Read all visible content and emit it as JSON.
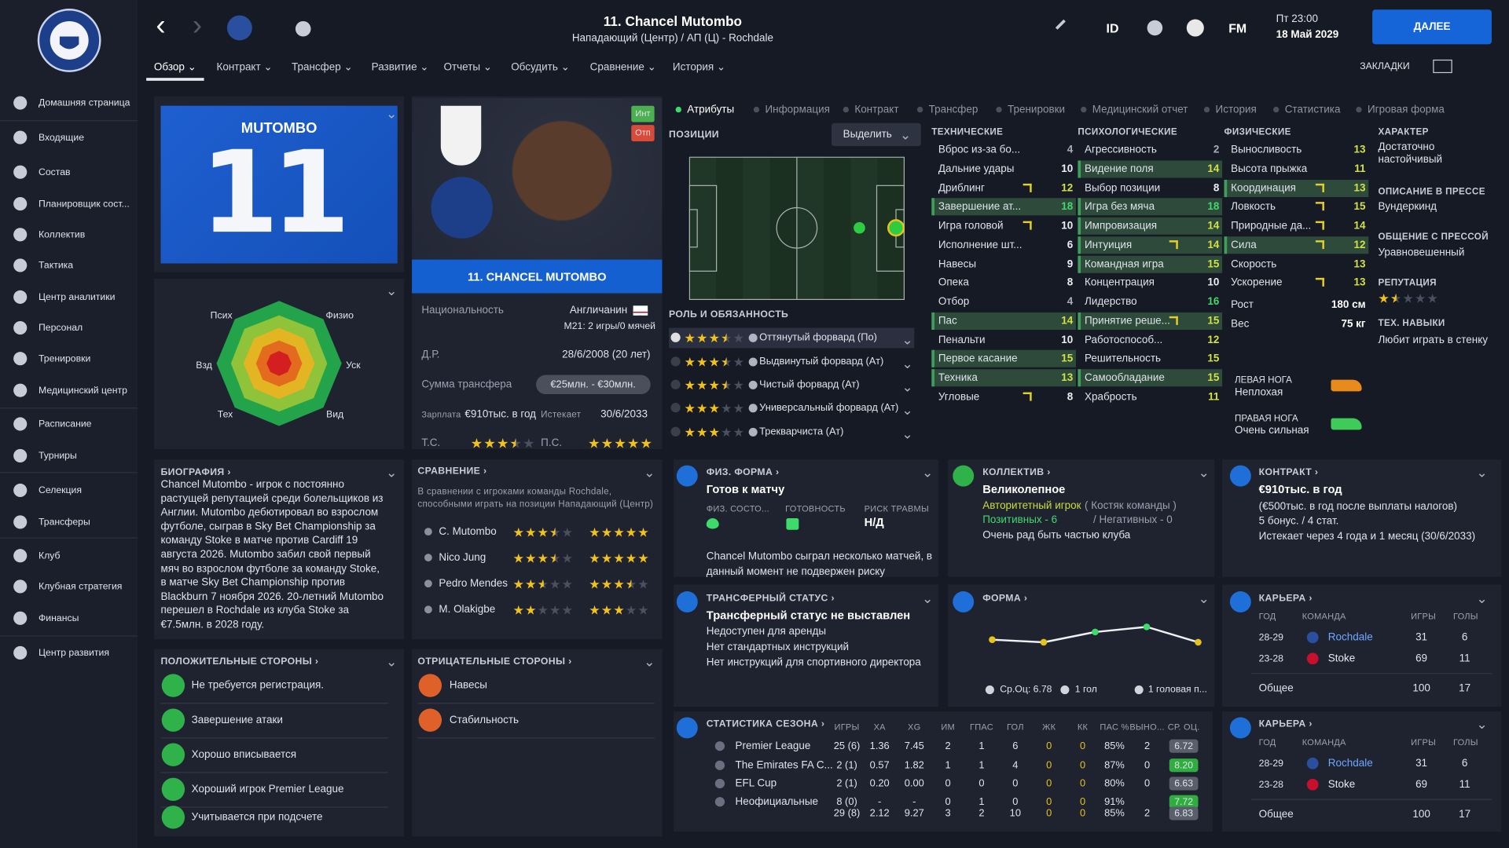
{
  "header": {
    "title": "11. Chancel Mutombo",
    "subtitle": "Нападающий (Центр) / АП (Ц) - Rochdale",
    "id": "ID",
    "fm": "FM",
    "time": "Пт 23:00",
    "date": "18 Май 2029",
    "next": "ДАЛЕЕ",
    "bookmarks": "ЗАКЛАДКИ"
  },
  "tabs": [
    "Обзор",
    "Контракт",
    "Трансфер",
    "Развитие",
    "Отчеты",
    "Обсудить",
    "Сравнение",
    "История"
  ],
  "sidebar": [
    "Домашняя страница",
    "Входящие",
    "Состав",
    "Планировщик сост...",
    "Коллектив",
    "Тактика",
    "Центр аналитики",
    "Персонал",
    "Тренировки",
    "Медицинский центр",
    "Расписание",
    "Турниры",
    "Селекция",
    "Трансферы",
    "Клуб",
    "Клубная стратегия",
    "Финансы",
    "Центр развития"
  ],
  "card": {
    "name": "MUTOMBO",
    "number": "11"
  },
  "radar_labels": [
    "Псих",
    "Физио",
    "Уск",
    "Вид",
    "Тех",
    "Взд"
  ],
  "profile": {
    "name": "11. CHANCEL MUTOMBO",
    "badge_int": "Инт",
    "badge_oth": "Отп",
    "nationality_label": "Национальность",
    "nationality": "Англичанин",
    "u21": "M21: 2 игры/0 мячей",
    "dob_label": "Д.Р.",
    "dob": "28/6/2008 (20 лет)",
    "fee_label": "Сумма трансфера",
    "fee": "€25млн. - €30млн.",
    "wage_label": "Зарплата",
    "wage": "€910тыс. в год",
    "expires_label": "Истекает",
    "expires": "30/6/2033",
    "ca_label": "Т.С.",
    "ca": 3.5,
    "pa_label": "П.С.",
    "pa": 5
  },
  "subtabs": [
    "Атрибуты",
    "Информация",
    "Контракт",
    "Трансфер",
    "Тренировки",
    "Медицинский отчет",
    "История",
    "Статистика",
    "Игровая форма"
  ],
  "positions": {
    "title": "ПОЗИЦИИ",
    "button": "Выделить"
  },
  "roles": {
    "title": "РОЛЬ И ОБЯЗАННОСТЬ",
    "items": [
      {
        "name": "Оттянутый форвард (По)",
        "stars": 3.5
      },
      {
        "name": "Выдвинутый форвард (Ат)",
        "stars": 3.5
      },
      {
        "name": "Чистый форвард (Ат)",
        "stars": 3.5
      },
      {
        "name": "Универсальный форвард (Ат)",
        "stars": 3
      },
      {
        "name": "Трекварчиста (Ат)",
        "stars": 3
      }
    ]
  },
  "attributes": [
    {
      "title": "ТЕХНИЧЕСКИЕ",
      "items": [
        {
          "name": "Вброс из-за бо...",
          "value": 4
        },
        {
          "name": "Дальние удары",
          "value": 10
        },
        {
          "name": "Дриблинг",
          "value": 12,
          "arrow": true
        },
        {
          "name": "Завершение ат...",
          "value": 18,
          "highlight": true
        },
        {
          "name": "Игра головой",
          "value": 10,
          "arrow": true
        },
        {
          "name": "Исполнение шт...",
          "value": 6
        },
        {
          "name": "Навесы",
          "value": 9
        },
        {
          "name": "Опека",
          "value": 8
        },
        {
          "name": "Отбор",
          "value": 4
        },
        {
          "name": "Пас",
          "value": 14,
          "highlight": true
        },
        {
          "name": "Пенальти",
          "value": 10
        },
        {
          "name": "Первое касание",
          "value": 15,
          "highlight": true
        },
        {
          "name": "Техника",
          "value": 13,
          "highlight": true
        },
        {
          "name": "Угловые",
          "value": 8,
          "arrow": true
        }
      ]
    },
    {
      "title": "ПСИХОЛОГИЧЕСКИЕ",
      "items": [
        {
          "name": "Агрессивность",
          "value": 2
        },
        {
          "name": "Видение поля",
          "value": 14,
          "highlight": true
        },
        {
          "name": "Выбор позиции",
          "value": 8
        },
        {
          "name": "Игра без мяча",
          "value": 18,
          "highlight": true
        },
        {
          "name": "Импровизация",
          "value": 14,
          "highlight": true
        },
        {
          "name": "Интуиция",
          "value": 14,
          "highlight": true,
          "arrow": true
        },
        {
          "name": "Командная игра",
          "value": 15,
          "highlight": true
        },
        {
          "name": "Концентрация",
          "value": 10
        },
        {
          "name": "Лидерство",
          "value": 16
        },
        {
          "name": "Принятие реше...",
          "value": 15,
          "highlight": true,
          "arrow": true
        },
        {
          "name": "Работоспособ...",
          "value": 12
        },
        {
          "name": "Решительность",
          "value": 15
        },
        {
          "name": "Самообладание",
          "value": 15,
          "highlight": true
        },
        {
          "name": "Храбрость",
          "value": 11
        }
      ]
    },
    {
      "title": "ФИЗИЧЕСКИЕ",
      "items": [
        {
          "name": "Выносливость",
          "value": 13
        },
        {
          "name": "Высота прыжка",
          "value": 11
        },
        {
          "name": "Координация",
          "value": 13,
          "highlight": true,
          "arrow": true
        },
        {
          "name": "Ловкость",
          "value": 15,
          "arrow": true
        },
        {
          "name": "Природные да...",
          "value": 14,
          "arrow": true
        },
        {
          "name": "Сила",
          "value": 12,
          "highlight": true,
          "arrow": true
        },
        {
          "name": "Скорость",
          "value": 13
        },
        {
          "name": "Ускорение",
          "value": 13,
          "arrow": true
        }
      ],
      "extra": [
        {
          "name": "Рост",
          "value": "180 см"
        },
        {
          "name": "Вес",
          "value": "75 кг"
        }
      ]
    }
  ],
  "character": [
    {
      "label": "ХАРАКТЕР",
      "value": "Достаточно настойчивый"
    },
    {
      "label": "ОПИСАНИЕ В ПРЕССЕ",
      "value": "Вундеркинд"
    },
    {
      "label": "ОБЩЕНИЕ С ПРЕССОЙ",
      "value": "Уравновешенный"
    },
    {
      "label": "РЕПУТАЦИЯ",
      "stars": 1.5
    },
    {
      "label": "ТЕХ. НАВЫКИ",
      "value": "Любит играть в стенку"
    }
  ],
  "feet": [
    {
      "label": "ЛЕВАЯ НОГА",
      "value": "Неплохая"
    },
    {
      "label": "ПРАВАЯ НОГА",
      "value": "Очень сильная"
    }
  ],
  "biography": {
    "title": "БИОГРАФИЯ",
    "text": "Chancel Mutombo - игрок с постоянно растущей репутацией среди болельщиков из Англии. Mutombo дебютировал во взрослом футболе, сыграв в Sky Bet Championship за команду Stoke в матче против Cardiff 19 августа 2026. Mutombo забил свой первый мяч во взрослом футболе за команду Stoke, в матче Sky Bet Championship против Blackburn 7 ноября 2026. 20-летний Mutombo перешел в Rochdale из клуба Stoke за €7.5млн. в 2028 году."
  },
  "comparison": {
    "title": "СРАВНЕНИЕ",
    "text": "В сравнении с игроками команды Rochdale, способными играть на позиции Нападающий (Центр)",
    "rows": [
      {
        "name": "C. Mutombo",
        "current": 3.5,
        "potential": 5
      },
      {
        "name": "Nico Jung",
        "current": 3.5,
        "potential": 5
      },
      {
        "name": "Pedro Mendes",
        "current": 2.5,
        "potential": 3.5
      },
      {
        "name": "M. Olakigbe",
        "current": 2,
        "potential": 3
      }
    ]
  },
  "positives": {
    "title": "ПОЛОЖИТЕЛЬНЫЕ СТОРОНЫ",
    "items": [
      "Не требуется регистрация.",
      "Завершение атаки",
      "Хорошо вписывается",
      "Хороший игрок Premier League",
      "Учитывается при подсчете"
    ]
  },
  "negatives": {
    "title": "ОТРИЦАТЕЛЬНЫЕ СТОРОНЫ",
    "items": [
      "Навесы",
      "Стабильность"
    ]
  },
  "fitness": {
    "title": "ФИЗ. ФОРМА",
    "headline": "Готов к матчу",
    "labels": [
      "ФИЗ. СОСТО...",
      "ГОТОВНОСТЬ",
      "РИСК ТРАВМЫ"
    ],
    "injury_risk": "Н/Д",
    "text": "Chancel Mutombo сыграл несколько матчей, в данный момент не подвержен риску"
  },
  "team": {
    "title": "КОЛЛЕКТИВ",
    "headline": "Великолепное",
    "status": "Авторитетный игрок",
    "role": "( Костяк команды )",
    "positive": "Позитивных - 6",
    "negative": "/ Негативных - 0",
    "text": "Очень рад быть частью клуба"
  },
  "contract": {
    "title": "КОНТРАКТ",
    "headline": "€910тыс. в год",
    "lines": [
      "(€500тыс. в год после выплаты налогов)",
      "5 бонус. / 4 стат.",
      "Истекает через 4 года и 1 месяц (30/6/2033)"
    ]
  },
  "transfer_status": {
    "title": "ТРАНСФЕРНЫЙ СТАТУС",
    "headline": "Трансферный статус не выставлен",
    "lines": [
      "Недоступен для аренды",
      "Нет стандартных инструкций",
      "Нет инструкций для спортивного директора"
    ]
  },
  "form": {
    "title": "ФОРМА",
    "values": [
      6.5,
      6.4,
      6.8,
      7.0,
      6.4
    ],
    "footer": [
      "Ср.Оц: 6.78",
      "1 гол",
      "1 головая п..."
    ]
  },
  "careers": [
    {
      "title": "КАРЬЕРА",
      "headers": [
        "ГОД",
        "КОМАНДА",
        "ИГРЫ",
        "ГОЛЫ"
      ],
      "rows": [
        [
          "28-29",
          "Rochdale",
          "31",
          "6"
        ],
        [
          "23-28",
          "Stoke",
          "69",
          "11"
        ]
      ],
      "total": [
        "Общее",
        "100",
        "17"
      ]
    },
    {
      "title": "КАРЬЕРА",
      "headers": [
        "ГОД",
        "КОМАНДА",
        "ИГРЫ",
        "ГОЛЫ"
      ],
      "rows": [
        [
          "28-29",
          "Rochdale",
          "31",
          "6"
        ],
        [
          "23-28",
          "Stoke",
          "69",
          "11"
        ]
      ],
      "total": [
        "Общее",
        "100",
        "17"
      ]
    }
  ],
  "season": {
    "title": "СТАТИСТИКА СЕЗОНА",
    "headers": [
      "ИГРЫ",
      "ХА",
      "XG",
      "ИМ",
      "ГПАС",
      "ГОЛ",
      "ЖК",
      "КК",
      "ПАС %",
      "ВЫНО...",
      "СР. ОЦ."
    ],
    "rows": [
      {
        "name": "Premier League",
        "cells": [
          "25 (6)",
          "1.36",
          "7.45",
          "2",
          "1",
          "6",
          "0",
          "0",
          "85%",
          "2",
          "6.72"
        ]
      },
      {
        "name": "The Emirates FA C...",
        "cells": [
          "2 (1)",
          "0.57",
          "1.82",
          "1",
          "1",
          "4",
          "0",
          "0",
          "87%",
          "0",
          "8.20"
        ]
      },
      {
        "name": "EFL Cup",
        "cells": [
          "2 (1)",
          "0.20",
          "0.00",
          "0",
          "0",
          "0",
          "0",
          "0",
          "80%",
          "0",
          "6.63"
        ]
      },
      {
        "name": "Неофициальные",
        "cells": [
          "8 (0)",
          "-",
          "-",
          "0",
          "1",
          "0",
          "0",
          "0",
          "91%",
          null,
          "7.72"
        ]
      }
    ],
    "total": [
      "29 (8)",
      "2.12",
      "9.27",
      "3",
      "2",
      "10",
      "0",
      "0",
      "85%",
      "2",
      "6.83"
    ]
  }
}
